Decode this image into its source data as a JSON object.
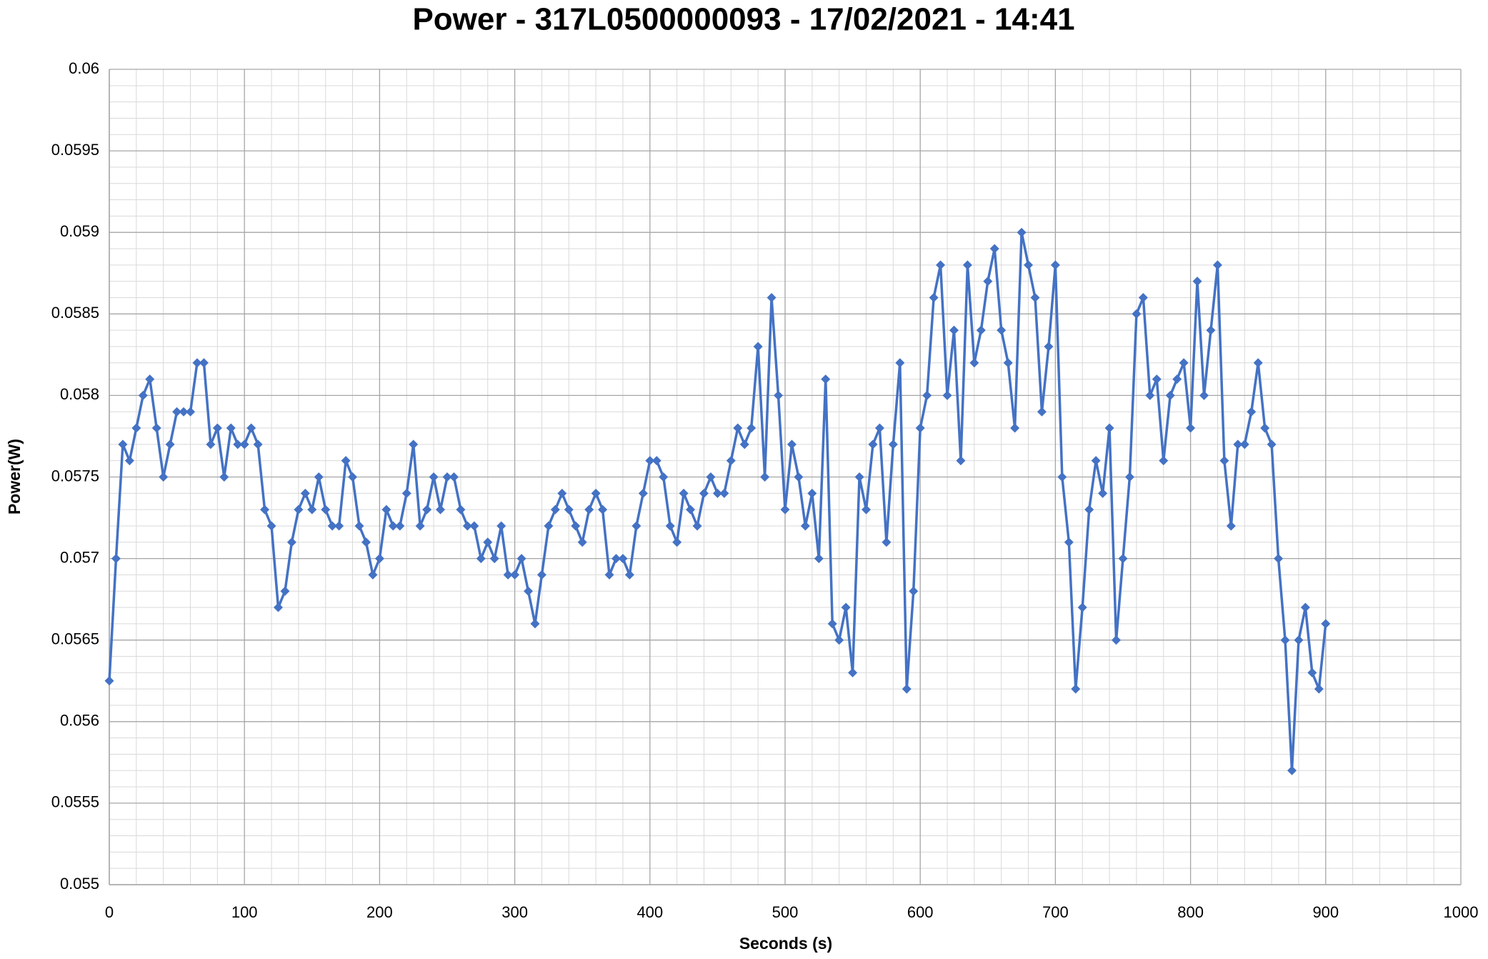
{
  "chart_data": {
    "type": "line",
    "title": "Power - 317L0500000093 - 17/02/2021 - 14:41",
    "x_label": "Seconds (s)",
    "y_label": "Power(W)",
    "xlim": [
      0,
      1000
    ],
    "xticks": [
      0,
      100,
      200,
      300,
      400,
      500,
      600,
      700,
      800,
      900,
      1000
    ],
    "ylim": [
      0.055,
      0.06
    ],
    "yticks": [
      0.055,
      0.0555,
      0.056,
      0.0565,
      0.057,
      0.0575,
      0.058,
      0.0585,
      0.059,
      0.0595,
      0.06
    ],
    "grid": true,
    "marker": "diamond",
    "x": [
      0,
      5,
      10,
      15,
      20,
      25,
      30,
      35,
      40,
      45,
      50,
      55,
      60,
      65,
      70,
      75,
      80,
      85,
      90,
      95,
      100,
      105,
      110,
      115,
      120,
      125,
      130,
      135,
      140,
      145,
      150,
      155,
      160,
      165,
      170,
      175,
      180,
      185,
      190,
      195,
      200,
      205,
      210,
      215,
      220,
      225,
      230,
      235,
      240,
      245,
      250,
      255,
      260,
      265,
      270,
      275,
      280,
      285,
      290,
      295,
      300,
      305,
      310,
      315,
      320,
      325,
      330,
      335,
      340,
      345,
      350,
      355,
      360,
      365,
      370,
      375,
      380,
      385,
      390,
      395,
      400,
      405,
      410,
      415,
      420,
      425,
      430,
      435,
      440,
      445,
      450,
      455,
      460,
      465,
      470,
      475,
      480,
      485,
      490,
      495,
      500,
      505,
      510,
      515,
      520,
      525,
      530,
      535,
      540,
      545,
      550,
      555,
      560,
      565,
      570,
      575,
      580,
      585,
      590,
      595,
      600,
      605,
      610,
      615,
      620,
      625,
      630,
      635,
      640,
      645,
      650,
      655,
      660,
      665,
      670,
      675,
      680,
      685,
      690,
      695,
      700,
      705,
      710,
      715,
      720,
      725,
      730,
      735,
      740,
      745,
      750,
      755,
      760,
      765,
      770,
      775,
      780,
      785,
      790,
      795,
      800,
      805,
      810,
      815,
      820,
      825,
      830,
      835,
      840,
      845,
      850,
      855,
      860,
      865,
      870,
      875,
      880,
      885,
      890,
      895,
      900
    ],
    "series": [
      {
        "name": "Power",
        "color": "#4472c4",
        "values": [
          0.05625,
          0.057,
          0.0577,
          0.0576,
          0.0578,
          0.058,
          0.0581,
          0.0578,
          0.0575,
          0.0577,
          0.0579,
          0.0579,
          0.0579,
          0.0582,
          0.0582,
          0.0577,
          0.0578,
          0.0575,
          0.0578,
          0.0577,
          0.0577,
          0.0578,
          0.0577,
          0.0573,
          0.0572,
          0.0567,
          0.0568,
          0.0571,
          0.0573,
          0.0574,
          0.0573,
          0.0575,
          0.0573,
          0.0572,
          0.0572,
          0.0576,
          0.0575,
          0.0572,
          0.0571,
          0.0569,
          0.057,
          0.0573,
          0.0572,
          0.0572,
          0.0574,
          0.0577,
          0.0572,
          0.0573,
          0.0575,
          0.0573,
          0.0575,
          0.0575,
          0.0573,
          0.0572,
          0.0572,
          0.057,
          0.0571,
          0.057,
          0.0572,
          0.0569,
          0.0569,
          0.057,
          0.0568,
          0.0566,
          0.0569,
          0.0572,
          0.0573,
          0.0574,
          0.0573,
          0.0572,
          0.0571,
          0.0573,
          0.0574,
          0.0573,
          0.0569,
          0.057,
          0.057,
          0.0569,
          0.0572,
          0.0574,
          0.0576,
          0.0576,
          0.0575,
          0.0572,
          0.0571,
          0.0574,
          0.0573,
          0.0572,
          0.0574,
          0.0575,
          0.0574,
          0.0574,
          0.0576,
          0.0578,
          0.0577,
          0.0578,
          0.0583,
          0.0575,
          0.0586,
          0.058,
          0.0573,
          0.0577,
          0.0575,
          0.0572,
          0.0574,
          0.057,
          0.0581,
          0.0566,
          0.0565,
          0.0567,
          0.0563,
          0.0575,
          0.0573,
          0.0577,
          0.0578,
          0.0571,
          0.0577,
          0.0582,
          0.0562,
          0.0568,
          0.0578,
          0.058,
          0.0586,
          0.0588,
          0.058,
          0.0584,
          0.0576,
          0.0588,
          0.0582,
          0.0584,
          0.0587,
          0.0589,
          0.0584,
          0.0582,
          0.0578,
          0.059,
          0.0588,
          0.0586,
          0.0579,
          0.0583,
          0.0588,
          0.0575,
          0.0571,
          0.0562,
          0.0567,
          0.0573,
          0.0576,
          0.0574,
          0.0578,
          0.0565,
          0.057,
          0.0575,
          0.0585,
          0.0586,
          0.058,
          0.0581,
          0.0576,
          0.058,
          0.0581,
          0.0582,
          0.0578,
          0.0587,
          0.058,
          0.0584,
          0.0588,
          0.0576,
          0.0572,
          0.0577,
          0.0577,
          0.0579,
          0.0582,
          0.0578,
          0.0577,
          0.057,
          0.0565,
          0.0557,
          0.0565,
          0.0567,
          0.0563,
          0.0562,
          0.0566
        ]
      }
    ]
  }
}
